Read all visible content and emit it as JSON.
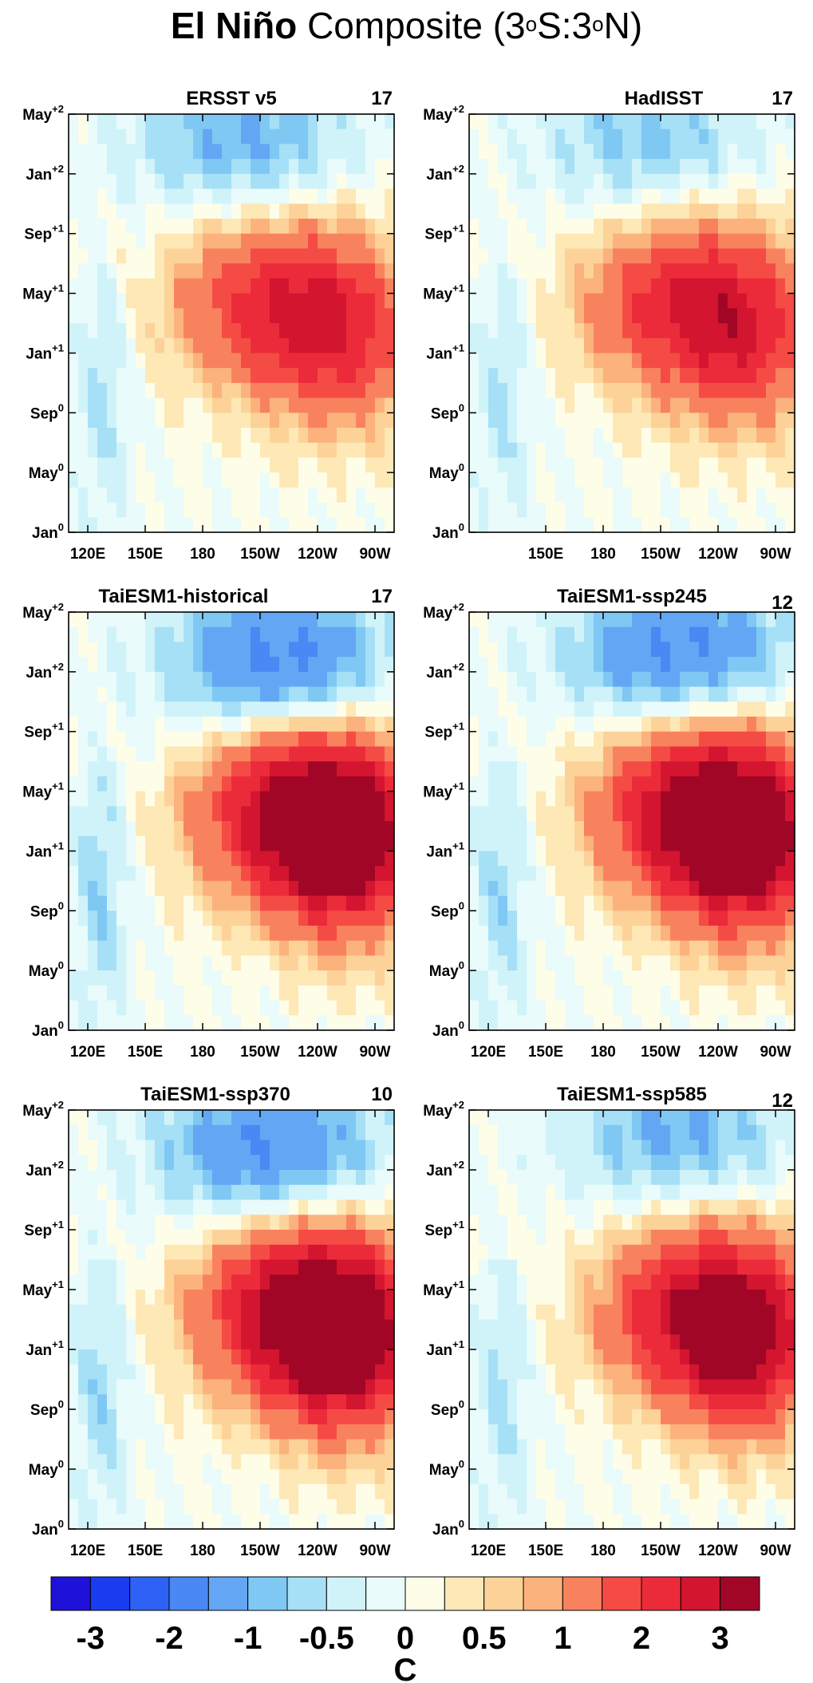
{
  "figure": {
    "title_bold": "El Niño",
    "title_rest": "Composite (3",
    "title_sup1": "o",
    "title_mid": "S:3",
    "title_sup2": "o",
    "title_end": "N)"
  },
  "chart_data": [
    {
      "type": "heatmap",
      "title": "ERSST v5",
      "count": "17",
      "x_tick_labels": [
        "120E",
        "150E",
        "180",
        "150W",
        "120W",
        "90W"
      ],
      "y_tick_labels": [
        "May+2",
        "Jan+2",
        "Sep+1",
        "May+1",
        "Jan+1",
        "Sep0",
        "May0",
        "Jan0"
      ],
      "warm_peak": {
        "center_lon": 210,
        "center_month": 22,
        "value": 2.0
      },
      "cold_peak": {
        "center_lon": 200,
        "center_month": 37,
        "value": -1.0
      }
    },
    {
      "type": "heatmap",
      "title": "HadISST",
      "count": "17",
      "x_tick_labels": [
        "150E",
        "180",
        "150W",
        "120W",
        "90W"
      ],
      "y_tick_labels": [
        "May+2",
        "Jan+2",
        "Sep+1",
        "May+1",
        "Jan+1",
        "Sep0",
        "May0",
        "Jan0"
      ],
      "warm_peak": {
        "center_lon": 215,
        "center_month": 22,
        "value": 2.0
      },
      "cold_peak": {
        "center_lon": 205,
        "center_month": 37,
        "value": -0.8
      }
    },
    {
      "type": "heatmap",
      "title": "TaiESM1-historical",
      "count": "17",
      "x_tick_labels": [
        "120E",
        "150E",
        "180",
        "150W",
        "120W",
        "90W"
      ],
      "y_tick_labels": [
        "May+2",
        "Jan+2",
        "Sep+1",
        "May+1",
        "Jan+1",
        "Sep0",
        "May0",
        "Jan0"
      ],
      "warm_peak": {
        "center_lon": 225,
        "center_month": 21,
        "value": 3.0
      },
      "cold_peak": {
        "center_lon": 220,
        "center_month": 35,
        "value": -1.6
      }
    },
    {
      "type": "heatmap",
      "title": "TaiESM1-ssp245",
      "count": "12",
      "x_tick_labels": [
        "120E",
        "150E",
        "180",
        "150W",
        "120W",
        "90W"
      ],
      "y_tick_labels": [
        "May+2",
        "Jan+2",
        "Sep+1",
        "May+1",
        "Jan+1",
        "Sep0",
        "May0",
        "Jan0"
      ],
      "warm_peak": {
        "center_lon": 225,
        "center_month": 21,
        "value": 3.0
      },
      "cold_peak": {
        "center_lon": 220,
        "center_month": 36,
        "value": -1.5
      }
    },
    {
      "type": "heatmap",
      "title": "TaiESM1-ssp370",
      "count": "10",
      "x_tick_labels": [
        "120E",
        "150E",
        "180",
        "150W",
        "120W",
        "90W"
      ],
      "y_tick_labels": [
        "May+2",
        "Jan+2",
        "Sep+1",
        "May+1",
        "Jan+1",
        "Sep0",
        "May0",
        "Jan0"
      ],
      "warm_peak": {
        "center_lon": 225,
        "center_month": 21,
        "value": 3.0
      },
      "cold_peak": {
        "center_lon": 215,
        "center_month": 36,
        "value": -1.5
      }
    },
    {
      "type": "heatmap",
      "title": "TaiESM1-ssp585",
      "count": "12",
      "x_tick_labels": [
        "120E",
        "150E",
        "180",
        "150W",
        "120W",
        "90W"
      ],
      "y_tick_labels": [
        "May+2",
        "Jan+2",
        "Sep+1",
        "May+1",
        "Jan+1",
        "Sep0",
        "May0",
        "Jan0"
      ],
      "warm_peak": {
        "center_lon": 225,
        "center_month": 21,
        "value": 2.5
      },
      "cold_peak": {
        "center_lon": 220,
        "center_month": 37,
        "value": -1.0
      }
    }
  ],
  "colorbar": {
    "unit": "C",
    "labels": [
      "-3",
      "-2",
      "-1",
      "-0.5",
      "0",
      "0.5",
      "1",
      "2",
      "3"
    ],
    "levels": [
      -3,
      -2.5,
      -2,
      -1.5,
      -1,
      -0.75,
      -0.5,
      -0.25,
      0,
      0.25,
      0.5,
      0.75,
      1,
      1.5,
      2,
      2.5,
      3
    ],
    "colors": [
      "#1e12d8",
      "#1a3cf0",
      "#2e62f5",
      "#4a88f3",
      "#63a7f4",
      "#80c8f4",
      "#a6e0f7",
      "#d0f3fa",
      "#e9fbfb",
      "#fefde8",
      "#fde8b6",
      "#fdd298",
      "#fbb27c",
      "#f9825e",
      "#f54b45",
      "#ec2b3a",
      "#d31530",
      "#a20626"
    ]
  }
}
